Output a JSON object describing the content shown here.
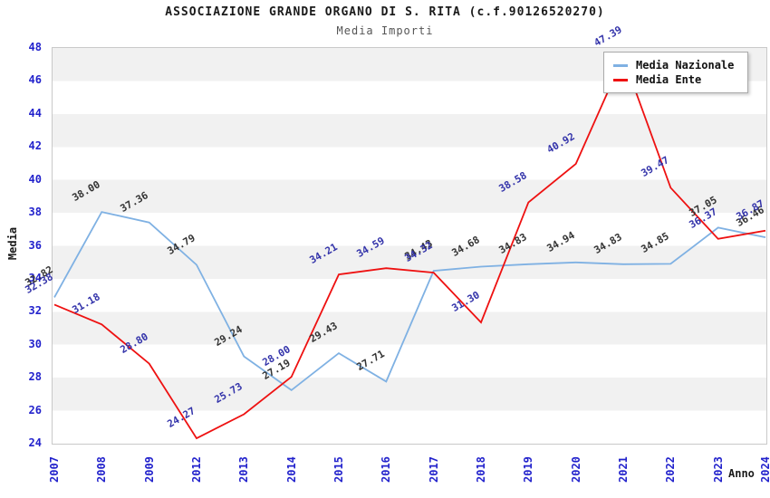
{
  "header": {
    "title": "ASSOCIAZIONE GRANDE ORGANO DI S. RITA (c.f.90126520270)",
    "subtitle": "Media Importi"
  },
  "chart_data": {
    "type": "line",
    "x": [
      "2007",
      "2008",
      "2009",
      "2012",
      "2013",
      "2014",
      "2015",
      "2016",
      "2017",
      "2018",
      "2019",
      "2020",
      "2021",
      "2022",
      "2023",
      "2024"
    ],
    "series": [
      {
        "name": "Media Nazionale",
        "color": "#7fb1e3",
        "label_color": "#333333",
        "values": [
          32.82,
          38.0,
          37.36,
          34.79,
          29.24,
          27.19,
          29.43,
          27.71,
          34.43,
          34.68,
          34.83,
          34.94,
          34.83,
          34.85,
          37.05,
          36.46
        ]
      },
      {
        "name": "Media Ente",
        "color": "#ee1111",
        "label_color": "#3333aa",
        "values": [
          32.38,
          31.18,
          28.8,
          24.27,
          25.73,
          28.0,
          34.21,
          34.59,
          34.32,
          31.3,
          38.58,
          40.92,
          47.39,
          39.47,
          36.37,
          36.87
        ]
      }
    ],
    "xlabel": "Anno",
    "ylabel": "Media",
    "ylim": [
      24,
      48
    ],
    "ytick_step": 2,
    "y_ticks": [
      24,
      26,
      28,
      30,
      32,
      34,
      36,
      38,
      40,
      42,
      44,
      46,
      48
    ],
    "legend_position": "top-right",
    "grid": "horizontal-bands",
    "tick_color": "#2222cc",
    "band_color": "#f1f1f1"
  }
}
